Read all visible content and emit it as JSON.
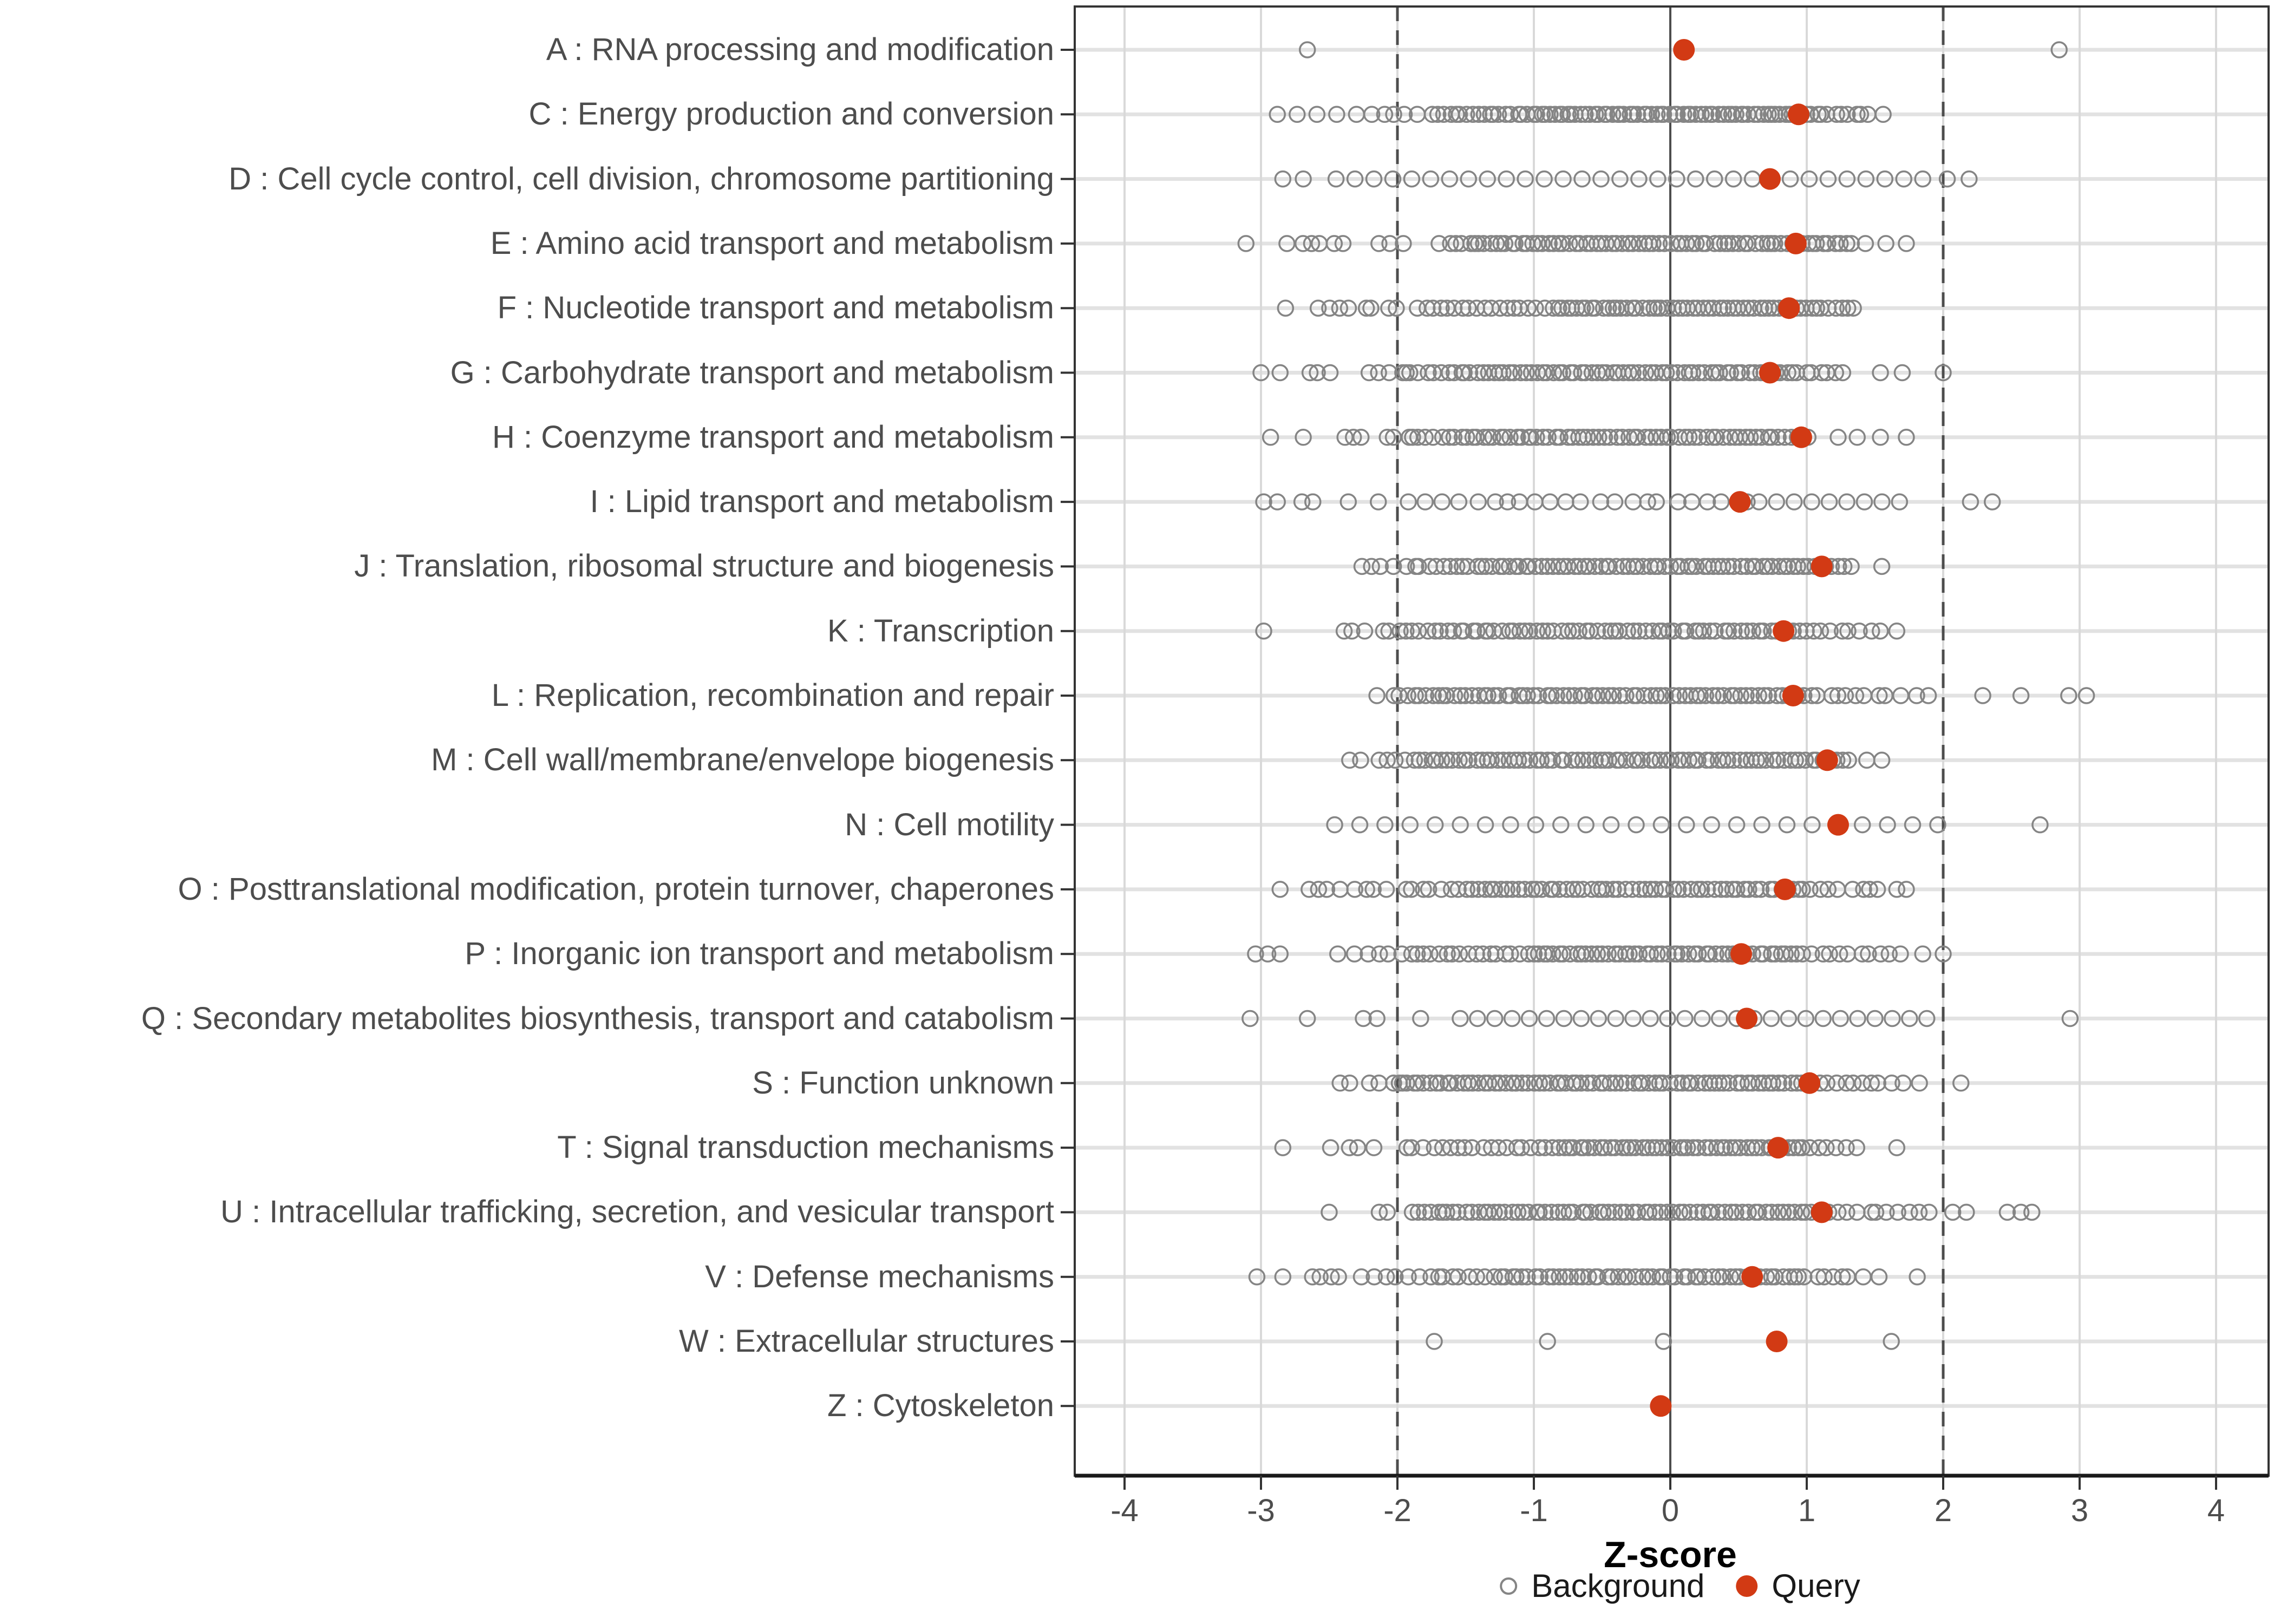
{
  "chart_data": {
    "type": "scatter",
    "title": "",
    "xlabel": "Z-score",
    "x_ticks": [
      -4,
      -3,
      -2,
      -1,
      0,
      1,
      2,
      3,
      4
    ],
    "xlim": [
      -4.35,
      4.35
    ],
    "grid": true,
    "reference_lines": {
      "solid": [
        0
      ],
      "dashed": [
        -2,
        2
      ]
    },
    "legend_position": "bottom",
    "legend": [
      {
        "label": "Background",
        "marker": "open-circle",
        "color": "#858585"
      },
      {
        "label": "Query",
        "marker": "filled-circle",
        "color": "#D23A14"
      }
    ],
    "series_note": "Each category row: query = red dot z-score; background = open gray circles, encoded as explicit points plus runs [start,end,count] estimated from the pixels.",
    "categories": [
      {
        "code": "A",
        "label": "A : RNA processing and modification",
        "query": 0.1,
        "bg_points": [
          -2.66,
          2.85
        ],
        "bg_runs": []
      },
      {
        "code": "C",
        "label": "C : Energy production and conversion",
        "query": 0.94,
        "bg_points": [
          1.56
        ],
        "bg_runs": [
          [
            -2.88,
            -2.3,
            5
          ],
          [
            -2.18,
            -1.75,
            6
          ],
          [
            -1.7,
            -1.0,
            18
          ],
          [
            -0.98,
            1.0,
            62
          ],
          [
            1.02,
            1.45,
            10
          ]
        ]
      },
      {
        "code": "D",
        "label": "D : Cell cycle control, cell division, chromosome partitioning",
        "query": 0.73,
        "bg_points": [
          -2.84,
          -2.69,
          2.03,
          2.19
        ],
        "bg_runs": [
          [
            -2.45,
            1.85,
            32
          ]
        ]
      },
      {
        "code": "E",
        "label": "E : Amino acid transport and metabolism",
        "query": 0.92,
        "bg_points": [
          -3.11,
          1.43,
          1.58,
          1.73
        ],
        "bg_runs": [
          [
            -2.8,
            -2.38,
            6
          ],
          [
            -2.12,
            -1.98,
            3
          ],
          [
            -1.68,
            -1.42,
            6
          ],
          [
            -1.4,
            1.05,
            64
          ],
          [
            1.07,
            1.33,
            7
          ]
        ]
      },
      {
        "code": "F",
        "label": "F : Nucleotide transport and metabolism",
        "query": 0.87,
        "bg_points": [
          -2.82
        ],
        "bg_runs": [
          [
            -2.6,
            -2.0,
            8
          ],
          [
            -1.85,
            -0.82,
            20
          ],
          [
            -0.8,
            0.95,
            48
          ],
          [
            0.98,
            1.35,
            9
          ]
        ]
      },
      {
        "code": "G",
        "label": "G : Carbohydrate transport and metabolism",
        "query": 0.73,
        "bg_points": [
          -3.0,
          -2.86,
          2.0
        ],
        "bg_runs": [
          [
            -2.64,
            -2.48,
            3
          ],
          [
            -2.2,
            -1.98,
            4
          ],
          [
            -1.95,
            -1.52,
            9
          ],
          [
            -1.5,
            0.85,
            60
          ],
          [
            0.88,
            1.25,
            8
          ],
          [
            1.54,
            1.7,
            2
          ]
        ]
      },
      {
        "code": "H",
        "label": "H : Coenzyme transport and metabolism",
        "query": 0.96,
        "bg_points": [
          -2.93,
          -2.69,
          1.23,
          1.37,
          1.54,
          1.73
        ],
        "bg_runs": [
          [
            -2.4,
            -2.28,
            3
          ],
          [
            -2.1,
            -1.94,
            3
          ],
          [
            -1.9,
            -1.52,
            8
          ],
          [
            -1.5,
            1.0,
            62
          ]
        ]
      },
      {
        "code": "I",
        "label": "I : Lipid transport and metabolism",
        "query": 0.51,
        "bg_points": [
          -2.98,
          -2.88,
          -2.7,
          -2.62,
          -2.36,
          -2.14,
          2.2,
          2.36
        ],
        "bg_runs": [
          [
            -1.92,
            -1.55,
            4
          ],
          [
            -1.42,
            0.6,
            19
          ],
          [
            0.65,
            1.68,
            9
          ]
        ]
      },
      {
        "code": "J",
        "label": "J : Translation, ribosomal structure and biogenesis",
        "query": 1.11,
        "bg_points": [
          -2.26,
          -2.19,
          1.55
        ],
        "bg_runs": [
          [
            -2.1,
            -1.94,
            3
          ],
          [
            -1.88,
            -1.42,
            10
          ],
          [
            -1.38,
            1.18,
            66
          ],
          [
            1.22,
            1.32,
            3
          ]
        ]
      },
      {
        "code": "K",
        "label": "K : Transcription",
        "query": 0.83,
        "bg_points": [
          -2.98,
          1.66
        ],
        "bg_runs": [
          [
            -2.4,
            -2.24,
            3
          ],
          [
            -2.12,
            -1.94,
            4
          ],
          [
            -1.9,
            -1.52,
            8
          ],
          [
            -1.5,
            1.0,
            58
          ],
          [
            1.04,
            1.52,
            8
          ]
        ]
      },
      {
        "code": "L",
        "label": "L : Replication, recombination and repair",
        "query": 0.9,
        "bg_points": [
          2.29,
          2.57,
          2.92,
          3.05
        ],
        "bg_runs": [
          [
            -2.14,
            -1.96,
            3
          ],
          [
            -1.92,
            0.98,
            70
          ],
          [
            1.02,
            1.58,
            9
          ],
          [
            1.7,
            1.92,
            3
          ]
        ]
      },
      {
        "code": "M",
        "label": "M : Cell wall/membrane/envelope biogenesis",
        "query": 1.15,
        "bg_points": [
          -2.35,
          -2.27,
          1.44,
          1.55
        ],
        "bg_runs": [
          [
            -2.12,
            -1.96,
            4
          ],
          [
            -1.88,
            1.12,
            74
          ],
          [
            1.15,
            1.32,
            5
          ]
        ]
      },
      {
        "code": "N",
        "label": "N : Cell motility",
        "query": 1.23,
        "bg_points": [
          2.71
        ],
        "bg_runs": [
          [
            -2.46,
            1.96,
            25
          ]
        ]
      },
      {
        "code": "O",
        "label": "O : Posttranslational modification, protein turnover, chaperones",
        "query": 0.84,
        "bg_points": [
          -2.86,
          1.66,
          1.73
        ],
        "bg_runs": [
          [
            -2.64,
            -2.52,
            3
          ],
          [
            -2.4,
            -2.1,
            5
          ],
          [
            -1.95,
            -1.55,
            7
          ],
          [
            -1.5,
            0.98,
            58
          ],
          [
            1.02,
            1.54,
            8
          ]
        ]
      },
      {
        "code": "P",
        "label": "P : Inorganic ion transport and metabolism",
        "query": 0.52,
        "bg_points": [
          -3.04,
          -2.95,
          -2.86,
          1.85,
          2.0
        ],
        "bg_runs": [
          [
            -2.45,
            -2.24,
            3
          ],
          [
            -2.12,
            -1.85,
            5
          ],
          [
            -1.8,
            -1.1,
            14
          ],
          [
            -1.05,
            0.97,
            52
          ],
          [
            1.03,
            1.68,
            10
          ]
        ]
      },
      {
        "code": "Q",
        "label": "Q : Secondary metabolites biosynthesis, transport and catabolism",
        "query": 0.56,
        "bg_points": [
          -3.08,
          -2.66,
          -2.25,
          -2.15,
          -1.83,
          2.93
        ],
        "bg_runs": [
          [
            -1.54,
            1.88,
            28
          ]
        ]
      },
      {
        "code": "S",
        "label": "S : Function unknown",
        "query": 1.02,
        "bg_points": [
          -2.42,
          -2.35,
          2.13
        ],
        "bg_runs": [
          [
            -2.2,
            -2.02,
            3
          ],
          [
            -2.0,
            1.0,
            76
          ],
          [
            1.04,
            1.48,
            8
          ],
          [
            1.55,
            1.81,
            4
          ]
        ]
      },
      {
        "code": "T",
        "label": "T : Signal transduction mechanisms",
        "query": 0.79,
        "bg_points": [
          -2.84,
          1.66
        ],
        "bg_runs": [
          [
            -2.47,
            -2.17,
            4
          ],
          [
            -1.95,
            -1.55,
            7
          ],
          [
            -1.5,
            -0.85,
            12
          ],
          [
            -0.82,
            0.98,
            48
          ],
          [
            1.02,
            1.37,
            6
          ]
        ]
      },
      {
        "code": "U",
        "label": "U : Intracellular trafficking, secretion, and vesicular transport",
        "query": 1.11,
        "bg_points": [
          -2.5,
          2.07,
          2.17,
          2.47,
          2.57,
          2.65
        ],
        "bg_runs": [
          [
            -2.14,
            -2.06,
            2
          ],
          [
            -1.88,
            1.12,
            72
          ],
          [
            1.15,
            1.9,
            11
          ]
        ]
      },
      {
        "code": "V",
        "label": "V : Defense mechanisms",
        "query": 0.6,
        "bg_points": [
          -3.03,
          -2.84,
          1.81
        ],
        "bg_runs": [
          [
            -2.62,
            -2.42,
            4
          ],
          [
            -2.25,
            -1.84,
            6
          ],
          [
            -1.77,
            -1.3,
            9
          ],
          [
            -1.25,
            0.95,
            52
          ],
          [
            1.0,
            1.31,
            6
          ],
          [
            1.44,
            1.55,
            2
          ]
        ]
      },
      {
        "code": "W",
        "label": "W : Extracellular structures",
        "query": 0.78,
        "bg_points": [
          -1.73,
          -0.9,
          -0.05,
          1.62
        ],
        "bg_runs": []
      },
      {
        "code": "Z",
        "label": "Z : Cytoskeleton",
        "query": -0.07,
        "bg_points": [],
        "bg_runs": []
      }
    ]
  },
  "style": {
    "query_color": "#D23A14",
    "background_stroke": "#858585",
    "grid_color": "#D9D9D9",
    "row_line_color": "#E2E2E2",
    "ref_line_color": "#4D4D4D",
    "axis_line_color": "#1A1A1A",
    "border_color": "#333333",
    "tick_color": "#333333",
    "label_color": "#4D4D4D",
    "title_color": "#000000",
    "legend_text_color": "#1A1A1A",
    "panel_bg": "#FFFFFF"
  }
}
